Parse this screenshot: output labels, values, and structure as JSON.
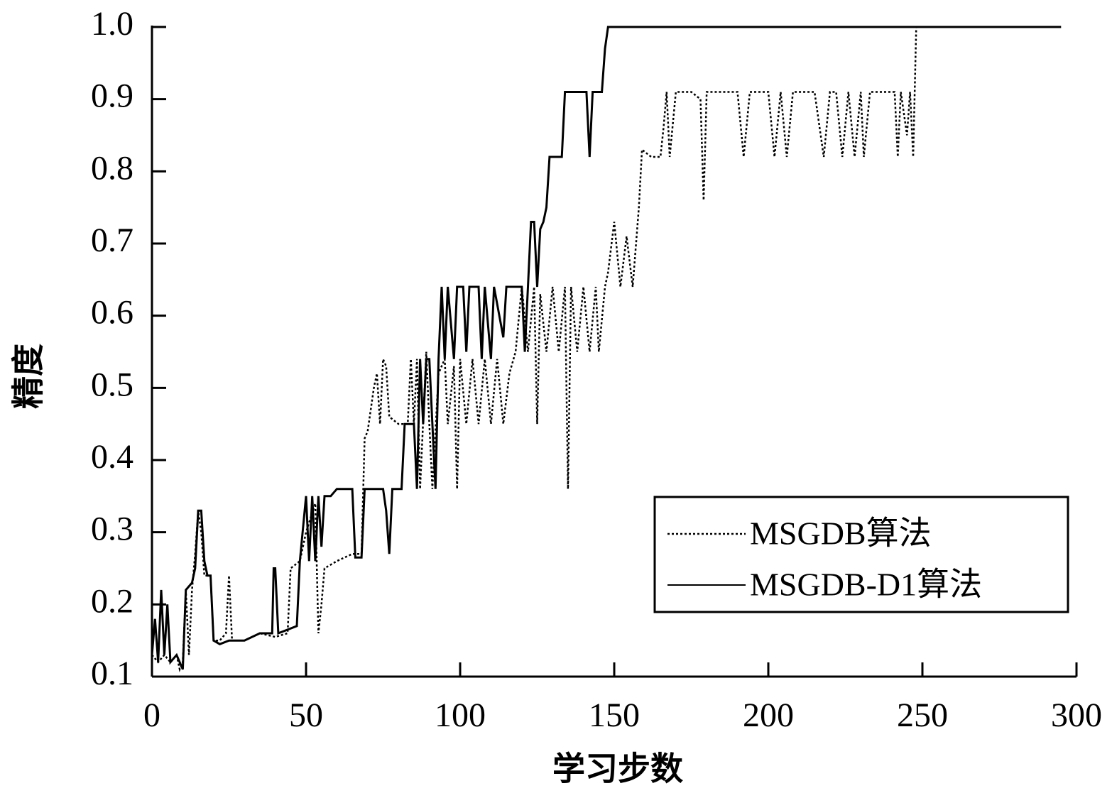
{
  "chart_data": {
    "type": "line",
    "xlabel": "学习步数",
    "ylabel": "精度",
    "xlim": [
      0,
      300
    ],
    "ylim": [
      0.1,
      1.0
    ],
    "xticks": [
      0,
      50,
      100,
      150,
      200,
      250,
      300
    ],
    "yticks": [
      0.1,
      0.2,
      0.3,
      0.4,
      0.5,
      0.6,
      0.7,
      0.8,
      0.9,
      {
        "value": 1.0,
        "label": "1.0"
      }
    ],
    "legend": "lower right",
    "series": [
      {
        "name": "MSGDB算法",
        "color": "#000000",
        "style": "dotted",
        "x": [
          0,
          2,
          4,
          6,
          8,
          9,
          10,
          11,
          12,
          13,
          14,
          15,
          16,
          17,
          19,
          20,
          22,
          24,
          25,
          26,
          30,
          35,
          40,
          44,
          45,
          48,
          50,
          53,
          54,
          55,
          56,
          60,
          65,
          68,
          69,
          70,
          72,
          73,
          74,
          75,
          76,
          77,
          80,
          83,
          84,
          85,
          86,
          87,
          89,
          90,
          91,
          93,
          95,
          96,
          98,
          99,
          100,
          102,
          104,
          106,
          108,
          110,
          112,
          114,
          116,
          118,
          120,
          122,
          124,
          125,
          126,
          128,
          130,
          132,
          134,
          135,
          136,
          138,
          140,
          142,
          144,
          145,
          147,
          148,
          150,
          152,
          154,
          156,
          158,
          159,
          162,
          165,
          166,
          167,
          168,
          170,
          175,
          178,
          179,
          180,
          185,
          190,
          192,
          194,
          200,
          202,
          204,
          206,
          208,
          215,
          218,
          220,
          222,
          224,
          226,
          228,
          230,
          231,
          233,
          241,
          242,
          243,
          245,
          246,
          247,
          248
        ],
        "values": [
          0.13,
          0.12,
          0.13,
          0.12,
          0.13,
          0.11,
          0.12,
          0.22,
          0.13,
          0.22,
          0.27,
          0.33,
          0.3,
          0.24,
          0.24,
          0.15,
          0.15,
          0.16,
          0.24,
          0.15,
          0.15,
          0.16,
          0.155,
          0.16,
          0.25,
          0.26,
          0.3,
          0.34,
          0.16,
          0.2,
          0.25,
          0.26,
          0.27,
          0.27,
          0.43,
          0.44,
          0.5,
          0.52,
          0.45,
          0.54,
          0.53,
          0.46,
          0.45,
          0.45,
          0.54,
          0.45,
          0.54,
          0.36,
          0.55,
          0.45,
          0.36,
          0.52,
          0.54,
          0.45,
          0.53,
          0.36,
          0.54,
          0.45,
          0.54,
          0.45,
          0.54,
          0.45,
          0.54,
          0.45,
          0.52,
          0.55,
          0.64,
          0.55,
          0.64,
          0.45,
          0.63,
          0.55,
          0.64,
          0.55,
          0.64,
          0.36,
          0.64,
          0.55,
          0.64,
          0.55,
          0.64,
          0.55,
          0.64,
          0.66,
          0.73,
          0.64,
          0.71,
          0.64,
          0.75,
          0.83,
          0.82,
          0.82,
          0.86,
          0.91,
          0.82,
          0.91,
          0.91,
          0.9,
          0.76,
          0.91,
          0.91,
          0.91,
          0.82,
          0.91,
          0.91,
          0.82,
          0.91,
          0.82,
          0.91,
          0.91,
          0.82,
          0.91,
          0.91,
          0.82,
          0.91,
          0.82,
          0.91,
          0.82,
          0.91,
          0.91,
          0.82,
          0.91,
          0.85,
          0.91,
          0.82,
          1.0
        ]
      },
      {
        "name": "MSGDB-D1算法",
        "color": "#000000",
        "style": "solid",
        "x": [
          0,
          1,
          2,
          3,
          4,
          5,
          6,
          8,
          10,
          11,
          13,
          14,
          15,
          16,
          17,
          18,
          19,
          20,
          22,
          25,
          30,
          35,
          39,
          39.5,
          40,
          41,
          47,
          48,
          50,
          51,
          52,
          53,
          54,
          55,
          56,
          58,
          60,
          65,
          66,
          68,
          69,
          75,
          76,
          77,
          78,
          81,
          82,
          85,
          86,
          87,
          88,
          89,
          90,
          91,
          92,
          93,
          94,
          95,
          96,
          98,
          99,
          101,
          102,
          103,
          106,
          107,
          108,
          110,
          111,
          114,
          115,
          120,
          121,
          122,
          123,
          124,
          125,
          126,
          127,
          128,
          129,
          133,
          134,
          141,
          142,
          143,
          146,
          147,
          148,
          295
        ],
        "values": [
          0.13,
          0.18,
          0.12,
          0.22,
          0.13,
          0.2,
          0.12,
          0.13,
          0.11,
          0.22,
          0.23,
          0.25,
          0.33,
          0.33,
          0.26,
          0.24,
          0.24,
          0.15,
          0.145,
          0.15,
          0.15,
          0.16,
          0.16,
          0.25,
          0.25,
          0.16,
          0.17,
          0.26,
          0.35,
          0.26,
          0.35,
          0.26,
          0.35,
          0.28,
          0.35,
          0.35,
          0.36,
          0.36,
          0.265,
          0.265,
          0.36,
          0.36,
          0.33,
          0.27,
          0.36,
          0.36,
          0.45,
          0.45,
          0.36,
          0.54,
          0.45,
          0.54,
          0.54,
          0.45,
          0.36,
          0.54,
          0.64,
          0.54,
          0.64,
          0.54,
          0.64,
          0.64,
          0.55,
          0.64,
          0.64,
          0.54,
          0.64,
          0.54,
          0.64,
          0.57,
          0.64,
          0.64,
          0.55,
          0.64,
          0.73,
          0.73,
          0.64,
          0.72,
          0.73,
          0.75,
          0.82,
          0.82,
          0.91,
          0.91,
          0.82,
          0.91,
          0.91,
          0.97,
          1.0,
          1.0
        ]
      }
    ]
  }
}
